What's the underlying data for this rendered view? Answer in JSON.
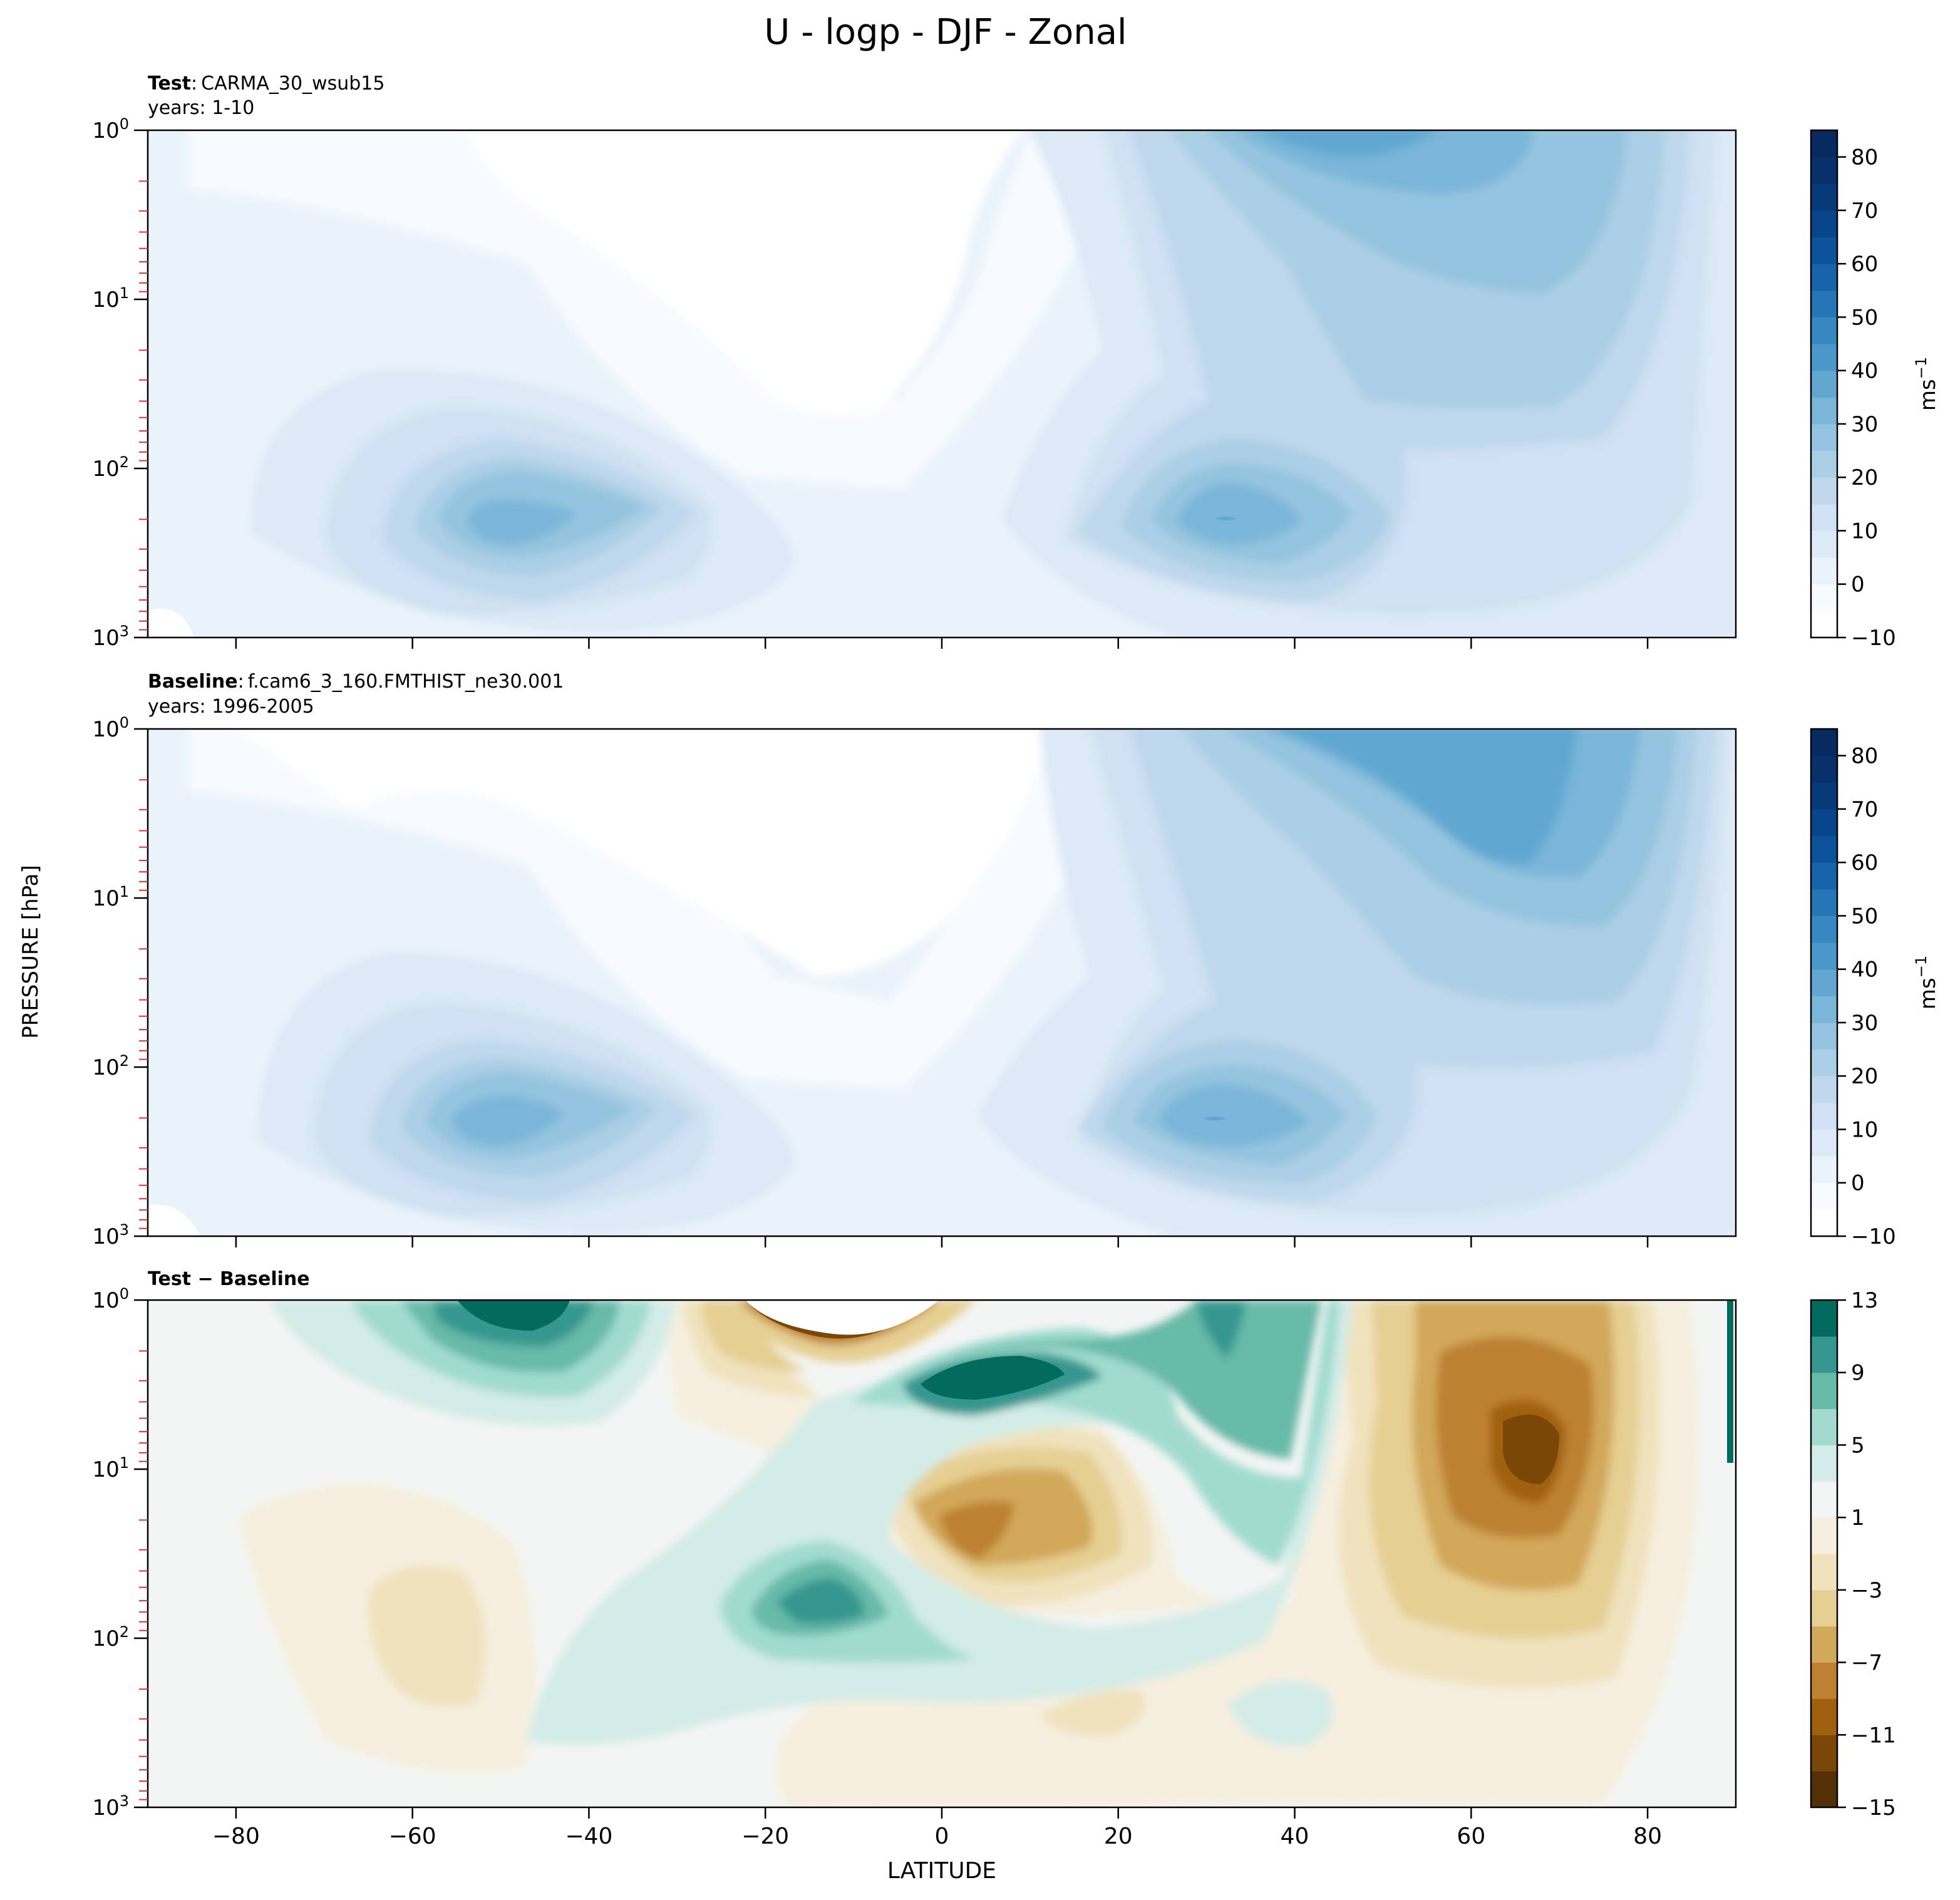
{
  "figure": {
    "title": "U - logp - DJF - Zonal"
  },
  "chart_data": [
    {
      "type": "heatmap",
      "panel": "test",
      "label_bold": "Test",
      "label_sep": ":",
      "case_name": "CARMA_30_wsub15",
      "years": "years: 1-10",
      "xlabel": "",
      "ylabel": "PRESSURE [hPa]",
      "y_scale": "log",
      "y_inverted": true,
      "xlim": [
        -90,
        90
      ],
      "ylim": [
        1000,
        1
      ],
      "x_ticks": [
        -80,
        -60,
        -40,
        -20,
        0,
        20,
        40,
        60,
        80
      ],
      "y_tick_labels": [
        [
          "1",
          "0"
        ],
        [
          "1",
          "1"
        ],
        [
          "1",
          "2"
        ],
        [
          "1",
          "3"
        ]
      ],
      "colorbar": {
        "label": "ms",
        "label_sup": "−1",
        "levels": [
          -10,
          -5,
          0,
          5,
          10,
          15,
          20,
          25,
          30,
          35,
          40,
          45,
          50,
          55,
          60,
          65,
          70,
          75,
          80,
          85
        ],
        "tick_labels": [
          "−10",
          "0",
          "10",
          "20",
          "30",
          "40",
          "50",
          "60",
          "70",
          "80"
        ],
        "colors": [
          "#ffffff",
          "#f7fbff",
          "#eaf3fb",
          "#dce9f6",
          "#cfe1f2",
          "#bfd8ed",
          "#abcfe5",
          "#94c4df",
          "#7ab6d9",
          "#61a7d2",
          "#4a98c9",
          "#3787c0",
          "#2675b6",
          "#1764ab",
          "#0d539a",
          "#08468b",
          "#083a7a",
          "#08306b",
          "#072a61"
        ]
      },
      "features": [
        {
          "lat": -47,
          "p": 220,
          "max": 35
        },
        {
          "lat": 33,
          "p": 210,
          "max": 40
        },
        {
          "lat": 40,
          "p": 1,
          "max": 50
        },
        {
          "lat": 0,
          "p": 3,
          "min": -5
        }
      ]
    },
    {
      "type": "heatmap",
      "panel": "baseline",
      "label_bold": "Baseline",
      "label_sep": ":",
      "case_name": "f.cam6_3_160.FMTHIST_ne30.001",
      "years": "years: 1996-2005",
      "xlabel": "",
      "ylabel": "PRESSURE [hPa]",
      "y_scale": "log",
      "y_inverted": true,
      "xlim": [
        -90,
        90
      ],
      "ylim": [
        1000,
        1
      ],
      "x_ticks": [
        -80,
        -60,
        -40,
        -20,
        0,
        20,
        40,
        60,
        80
      ],
      "y_tick_labels": [
        [
          "1",
          "0"
        ],
        [
          "1",
          "1"
        ],
        [
          "1",
          "2"
        ],
        [
          "1",
          "3"
        ]
      ],
      "colorbar": {
        "label": "ms",
        "label_sup": "−1",
        "levels": [
          -10,
          -5,
          0,
          5,
          10,
          15,
          20,
          25,
          30,
          35,
          40,
          45,
          50,
          55,
          60,
          65,
          70,
          75,
          80,
          85
        ],
        "tick_labels": [
          "−10",
          "0",
          "10",
          "20",
          "30",
          "40",
          "50",
          "60",
          "70",
          "80"
        ],
        "colors": [
          "#ffffff",
          "#f7fbff",
          "#eaf3fb",
          "#dce9f6",
          "#cfe1f2",
          "#bfd8ed",
          "#abcfe5",
          "#94c4df",
          "#7ab6d9",
          "#61a7d2",
          "#4a98c9",
          "#3787c0",
          "#2675b6",
          "#1764ab",
          "#0d539a",
          "#08468b",
          "#083a7a",
          "#08306b",
          "#072a61"
        ]
      },
      "features": [
        {
          "lat": -50,
          "p": 220,
          "max": 35
        },
        {
          "lat": 31,
          "p": 210,
          "max": 40
        },
        {
          "lat": 65,
          "p": 5,
          "max": 50
        }
      ]
    },
    {
      "type": "heatmap",
      "panel": "difference",
      "label_bold": "Test − Baseline",
      "case_name": "",
      "years": "",
      "xlabel": "LATITUDE",
      "ylabel": "PRESSURE [hPa]",
      "y_scale": "log",
      "y_inverted": true,
      "xlim": [
        -90,
        90
      ],
      "ylim": [
        1000,
        1
      ],
      "x_ticks": [
        -80,
        -60,
        -40,
        -20,
        0,
        20,
        40,
        60,
        80
      ],
      "x_tick_labels": [
        "−80",
        "−60",
        "−40",
        "−20",
        "0",
        "20",
        "40",
        "60",
        "80"
      ],
      "y_tick_labels": [
        [
          "1",
          "0"
        ],
        [
          "1",
          "1"
        ],
        [
          "1",
          "2"
        ],
        [
          "1",
          "3"
        ]
      ],
      "colorbar": {
        "label": "",
        "levels": [
          -15,
          -13,
          -11,
          -9,
          -7,
          -5,
          -3,
          -1,
          1,
          3,
          5,
          7,
          9,
          11,
          13
        ],
        "tick_labels": [
          "−15",
          "−11",
          "−7",
          "−3",
          "1",
          "5",
          "9",
          "13"
        ],
        "colors": [
          "#543005",
          "#7a4708",
          "#a0600f",
          "#bd8131",
          "#d2a85a",
          "#e6cf93",
          "#f0e2bd",
          "#f6efdf",
          "#f3f5f4",
          "#d3ece7",
          "#a1dbd0",
          "#68baa9",
          "#35978f",
          "#036b5e"
        ]
      },
      "features": [
        {
          "lat": 66,
          "p": 6,
          "min": -13
        },
        {
          "lat": 3,
          "p": 20,
          "min": -9
        },
        {
          "lat": -45,
          "p": 1,
          "max": 11
        },
        {
          "lat": 5,
          "p": 3,
          "max": 11
        },
        {
          "lat": -13,
          "p": 50,
          "max": 9
        },
        {
          "lat": -22,
          "p": 1,
          "min": -15
        }
      ]
    }
  ]
}
